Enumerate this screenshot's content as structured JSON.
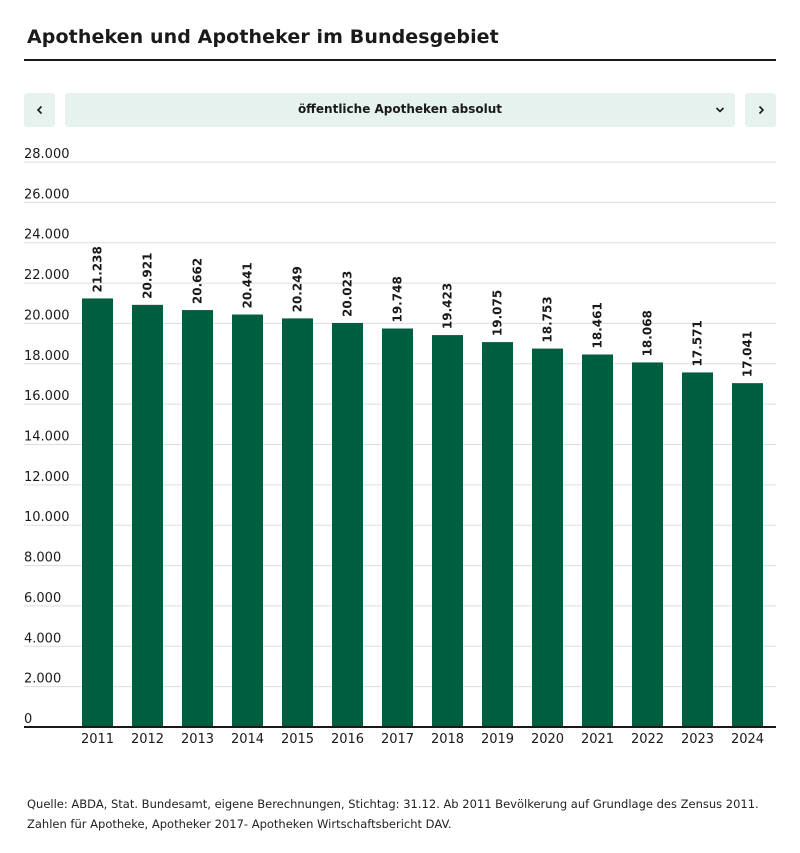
{
  "header": {
    "title": "Apotheken und Apotheker im Bundesgebiet"
  },
  "selector": {
    "label": "öffentliche Apotheken absolut",
    "prev_icon": "chevron-left-icon",
    "next_icon": "chevron-right-icon",
    "dropdown_icon": "chevron-down-icon"
  },
  "colors": {
    "bar": "#005e40",
    "selector_bg": "#e6f2ee",
    "grid": "#dddddd",
    "text": "#1a1a1a"
  },
  "chart_data": {
    "type": "bar",
    "categories": [
      "2011",
      "2012",
      "2013",
      "2014",
      "2015",
      "2016",
      "2017",
      "2018",
      "2019",
      "2020",
      "2021",
      "2022",
      "2023",
      "2024"
    ],
    "values": [
      21238,
      20921,
      20662,
      20441,
      20249,
      20023,
      19748,
      19423,
      19075,
      18753,
      18461,
      18068,
      17571,
      17041
    ],
    "value_labels": [
      "21.238",
      "20.921",
      "20.662",
      "20.441",
      "20.249",
      "20.023",
      "19.748",
      "19.423",
      "19.075",
      "18.753",
      "18.461",
      "18.068",
      "17.571",
      "17.041"
    ],
    "yticks": [
      0,
      2000,
      4000,
      6000,
      8000,
      10000,
      12000,
      14000,
      16000,
      18000,
      20000,
      22000,
      24000,
      26000,
      28000
    ],
    "ytick_labels": [
      "0",
      "2.000",
      "4.000",
      "6.000",
      "8.000",
      "10.000",
      "12.000",
      "14.000",
      "16.000",
      "18.000",
      "20.000",
      "22.000",
      "24.000",
      "26.000",
      "28.000"
    ],
    "ylim": [
      0,
      28000
    ],
    "grid": true,
    "title": "",
    "xlabel": "",
    "ylabel": ""
  },
  "footer": {
    "line1": "Quelle: ABDA, Stat. Bundesamt, eigene Berechnungen, Stichtag: 31.12. Ab 2011 Bevölkerung auf Grundlage des Zensus 2011.",
    "line2": "Zahlen für Apotheke, Apotheker 2017- Apotheken Wirtschaftsbericht DAV."
  }
}
